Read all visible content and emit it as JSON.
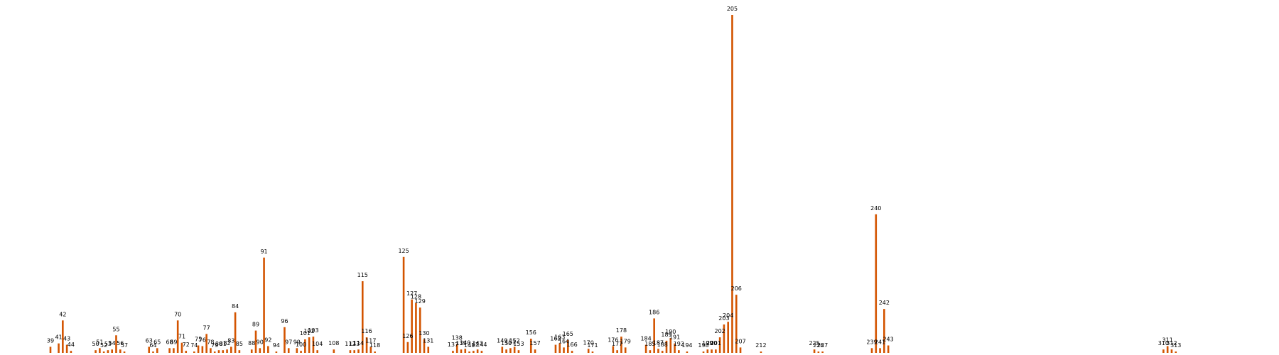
{
  "chart_data": {
    "type": "bar",
    "title": "",
    "xlabel": "",
    "ylabel": "",
    "x": [
      39,
      41,
      42,
      43,
      44,
      50,
      51,
      52,
      53,
      54,
      55,
      56,
      57,
      63,
      64,
      65,
      68,
      69,
      70,
      71,
      72,
      74,
      75,
      76,
      77,
      78,
      79,
      80,
      81,
      82,
      83,
      84,
      85,
      88,
      89,
      90,
      91,
      92,
      94,
      96,
      97,
      99,
      100,
      101,
      102,
      103,
      104,
      108,
      112,
      113,
      114,
      115,
      116,
      117,
      118,
      125,
      126,
      127,
      128,
      129,
      130,
      131,
      137,
      138,
      139,
      140,
      141,
      142,
      143,
      144,
      149,
      150,
      151,
      152,
      153,
      156,
      157,
      162,
      163,
      164,
      165,
      166,
      170,
      171,
      176,
      177,
      178,
      179,
      184,
      185,
      186,
      187,
      188,
      189,
      190,
      191,
      192,
      194,
      198,
      199,
      200,
      201,
      202,
      203,
      204,
      205,
      206,
      207,
      212,
      225,
      226,
      227,
      239,
      240,
      241,
      242,
      243,
      310,
      311,
      312,
      313
    ],
    "values": [
      9,
      14,
      48,
      12,
      3,
      4,
      7,
      2,
      4,
      5,
      26,
      5,
      2,
      9,
      2,
      7,
      7,
      7,
      48,
      15,
      3,
      2,
      11,
      10,
      28,
      7,
      2,
      4,
      4,
      5,
      9,
      60,
      4,
      5,
      33,
      7,
      141,
      10,
      2,
      38,
      7,
      7,
      3,
      20,
      23,
      24,
      4,
      5,
      4,
      4,
      5,
      106,
      23,
      9,
      2,
      142,
      16,
      79,
      74,
      67,
      20,
      9,
      3,
      13,
      5,
      6,
      2,
      3,
      5,
      3,
      9,
      5,
      7,
      9,
      4,
      21,
      5,
      12,
      14,
      8,
      19,
      3,
      6,
      2,
      10,
      4,
      24,
      8,
      12,
      4,
      51,
      6,
      3,
      18,
      22,
      14,
      4,
      2,
      2,
      5,
      5,
      5,
      23,
      42,
      46,
      500,
      86,
      8,
      2,
      5,
      2,
      2,
      7,
      205,
      7,
      65,
      11,
      5,
      10,
      5,
      2
    ],
    "ylim": [
      0,
      500
    ],
    "grid": false,
    "bar_color": "#d35400"
  }
}
